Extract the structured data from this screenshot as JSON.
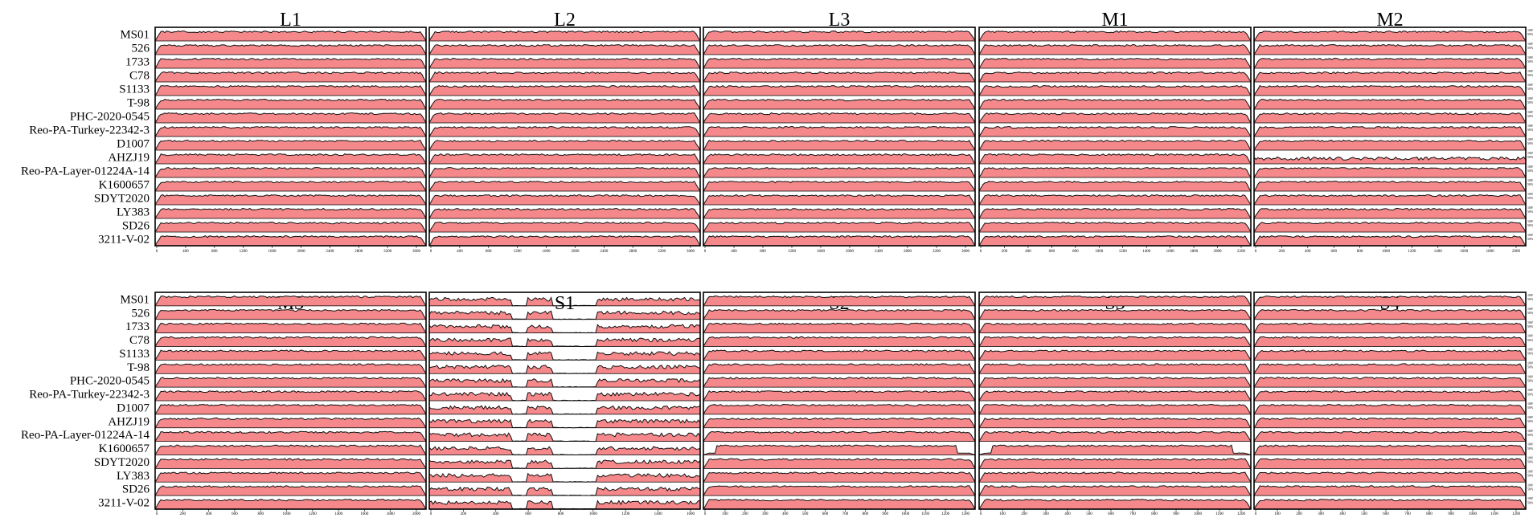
{
  "colors": {
    "fill": "#f4888a",
    "line": "#111111",
    "frame": "#000000",
    "background": "#ffffff"
  },
  "chart_data": {
    "type": "area",
    "description_note": "",
    "rows": [
      "MS01",
      "526",
      "1733",
      "C78",
      "S1133",
      "T-98",
      "PHC-2020-0545",
      "Reo-PA-Turkey-22342-3",
      "D1007",
      "AHZJ19",
      "Reo-PA-Layer-01224A-14",
      "K1600657",
      "SDYT2020",
      "LY383",
      "SD26",
      "3211-V-02"
    ],
    "ylim": [
      0,
      100
    ],
    "panels_top": [
      {
        "title": "L1",
        "xticks": [
          "0",
          "400",
          "800",
          "1200",
          "1600",
          "2000",
          "2400",
          "2800",
          "3200",
          "3600"
        ]
      },
      {
        "title": "L2",
        "xticks": [
          "0",
          "400",
          "800",
          "1200",
          "1600",
          "2000",
          "2400",
          "2800",
          "3200",
          "3600"
        ]
      },
      {
        "title": "L3",
        "xticks": [
          "0",
          "400",
          "800",
          "1200",
          "1600",
          "2000",
          "2400",
          "2800",
          "3200",
          "3600"
        ]
      },
      {
        "title": "M1",
        "xticks": [
          "0",
          "200",
          "400",
          "600",
          "800",
          "1000",
          "1200",
          "1400",
          "1600",
          "1800",
          "2000",
          "2200"
        ]
      },
      {
        "title": "M2",
        "xticks": [
          "0",
          "200",
          "400",
          "600",
          "800",
          "1000",
          "1200",
          "1400",
          "1600",
          "1800",
          "2000"
        ]
      }
    ],
    "panels_bottom": [
      {
        "title": "M3",
        "xticks": [
          "0",
          "200",
          "400",
          "600",
          "800",
          "1000",
          "1200",
          "1400",
          "1600",
          "1800",
          "2000"
        ]
      },
      {
        "title": "S1",
        "xticks": [
          "0",
          "200",
          "400",
          "600",
          "800",
          "1000",
          "1200",
          "1400",
          "1600"
        ]
      },
      {
        "title": "S2",
        "xticks": [
          "0",
          "100",
          "200",
          "300",
          "400",
          "500",
          "600",
          "700",
          "800",
          "900",
          "1000",
          "1100",
          "1200",
          "1300"
        ]
      },
      {
        "title": "S3",
        "xticks": [
          "0",
          "100",
          "200",
          "300",
          "400",
          "500",
          "600",
          "700",
          "800",
          "900",
          "1000",
          "1100",
          "1200"
        ]
      },
      {
        "title": "S4",
        "xticks": [
          "0",
          "100",
          "200",
          "300",
          "400",
          "500",
          "600",
          "700",
          "800",
          "900",
          "1000",
          "1100",
          "1200"
        ]
      }
    ],
    "right_axis_labels": [
      "100%",
      "50%"
    ]
  }
}
